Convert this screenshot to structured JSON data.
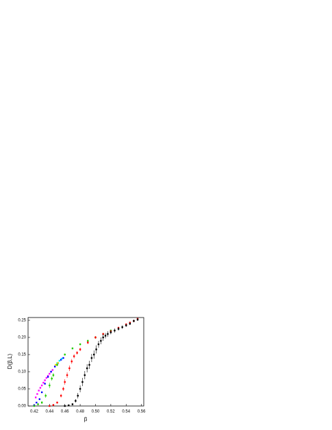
{
  "chart_data": {
    "type": "scatter",
    "x_label": "β",
    "y_label": "D(β,L)",
    "xlim": [
      0.412,
      0.563
    ],
    "ylim": [
      0,
      0.258
    ],
    "xticks": [
      0.42,
      0.44,
      0.46,
      0.48,
      {
        "value": 0.5,
        "label": "0.50"
      },
      0.52,
      0.54,
      0.56
    ],
    "yticks": [
      {
        "value": 0,
        "label": "0.00"
      },
      0.05,
      {
        "value": 0.1,
        "label": "0.10"
      },
      0.15,
      {
        "value": 0.2,
        "label": "0.20"
      },
      0.25
    ],
    "series": [
      {
        "color": "#ff00ff",
        "x": [
          0.422,
          0.424,
          0.426,
          0.428,
          0.43,
          0.432,
          0.434,
          0.436,
          0.438,
          0.44,
          0.442,
          0.444
        ],
        "values": [
          0.025,
          0.035,
          0.045,
          0.053,
          0.06,
          0.068,
          0.075,
          0.082,
          0.088,
          0.094,
          0.1,
          0.105
        ]
      },
      {
        "color": "#0000ff",
        "x": [
          0.42,
          0.423,
          0.427,
          0.43,
          0.434,
          0.438,
          0.442,
          0.447,
          0.451,
          0.455,
          0.458
        ],
        "values": [
          0.002,
          0.01,
          0.02,
          0.04,
          0.065,
          0.085,
          0.1,
          0.115,
          0.125,
          0.135,
          0.14
        ]
      },
      {
        "color": "#00e5ff",
        "x": [
          0.45,
          0.453,
          0.456
        ],
        "values": [
          0.125,
          0.132,
          0.138
        ]
      },
      {
        "color": "#ffd700",
        "x": [
          0.448,
          0.451
        ],
        "values": [
          0.12,
          0.126
        ]
      },
      {
        "color": "#22cc00",
        "x": [
          0.42,
          0.425,
          0.43,
          0.435,
          0.44,
          0.443,
          0.445,
          0.45,
          0.46,
          0.47,
          0.48,
          0.49,
          0.5,
          0.51,
          0.52
        ],
        "values": [
          0,
          0.005,
          0.01,
          0.03,
          0.06,
          0.08,
          0.09,
          0.12,
          0.15,
          0.168,
          0.18,
          0.19,
          0.2,
          0.21,
          0.22
        ],
        "errors": [
          0.002,
          0.003,
          0.004,
          0.006,
          0.008,
          0.006,
          0.006,
          0.004,
          0.003,
          0.003,
          0.003,
          0.003,
          0.003,
          0.003,
          0.003
        ]
      },
      {
        "color": "#ff0000",
        "x": [
          0.44,
          0.445,
          0.45,
          0.455,
          0.458,
          0.46,
          0.463,
          0.466,
          0.469,
          0.472,
          0.476,
          0.48,
          0.49,
          0.5,
          0.51,
          0.52,
          0.53,
          0.54,
          0.545,
          0.55,
          0.555
        ],
        "values": [
          0,
          0.003,
          0.01,
          0.03,
          0.05,
          0.07,
          0.09,
          0.11,
          0.13,
          0.145,
          0.155,
          0.165,
          0.185,
          0.2,
          0.21,
          0.218,
          0.228,
          0.238,
          0.243,
          0.248,
          0.254
        ],
        "errors": [
          0.002,
          0.002,
          0.003,
          0.005,
          0.006,
          0.008,
          0.008,
          0.008,
          0.007,
          0.006,
          0.005,
          0.005,
          0.004,
          0.004,
          0.003,
          0.003,
          0.003,
          0.003,
          0.003,
          0.003,
          0.003
        ]
      },
      {
        "color": "#000000",
        "x": [
          0.46,
          0.465,
          0.47,
          0.474,
          0.477,
          0.48,
          0.483,
          0.486,
          0.489,
          0.492,
          0.495,
          0.498,
          0.501,
          0.504,
          0.507,
          0.51,
          0.513,
          0.516,
          0.52,
          0.525,
          0.53,
          0.535,
          0.54,
          0.545,
          0.55,
          0.555
        ],
        "values": [
          0,
          0.002,
          0.005,
          0.015,
          0.03,
          0.05,
          0.07,
          0.09,
          0.11,
          0.12,
          0.14,
          0.15,
          0.165,
          0.18,
          0.19,
          0.2,
          0.205,
          0.21,
          0.215,
          0.22,
          0.225,
          0.23,
          0.235,
          0.24,
          0.248,
          0.252
        ],
        "errors": [
          0.002,
          0.002,
          0.003,
          0.005,
          0.008,
          0.01,
          0.012,
          0.012,
          0.012,
          0.012,
          0.012,
          0.012,
          0.012,
          0.01,
          0.01,
          0.01,
          0.008,
          0.008,
          0.006,
          0.006,
          0.005,
          0.005,
          0.004,
          0.004,
          0.004,
          0.004
        ]
      }
    ]
  }
}
